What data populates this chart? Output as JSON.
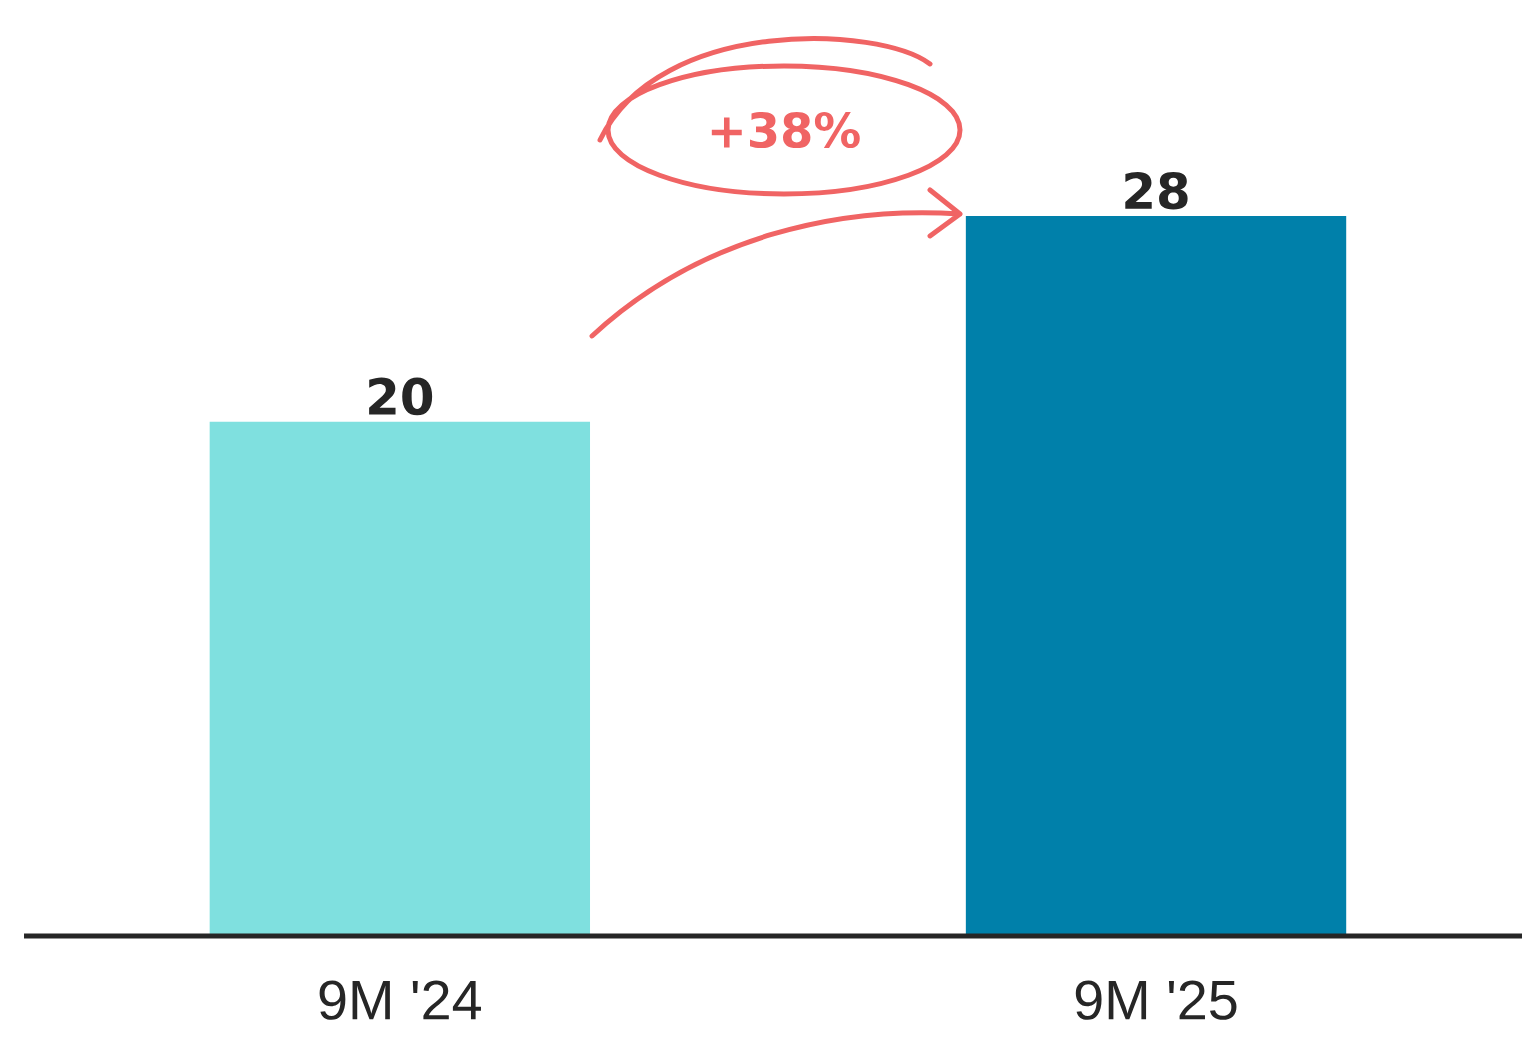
{
  "chart_data": {
    "type": "bar",
    "categories": [
      "9M '24",
      "9M '25"
    ],
    "values": [
      20,
      28
    ],
    "colors": [
      "#7fe0df",
      "#0080aa"
    ],
    "data_labels": true,
    "annotations": [
      "+38%"
    ]
  }
}
